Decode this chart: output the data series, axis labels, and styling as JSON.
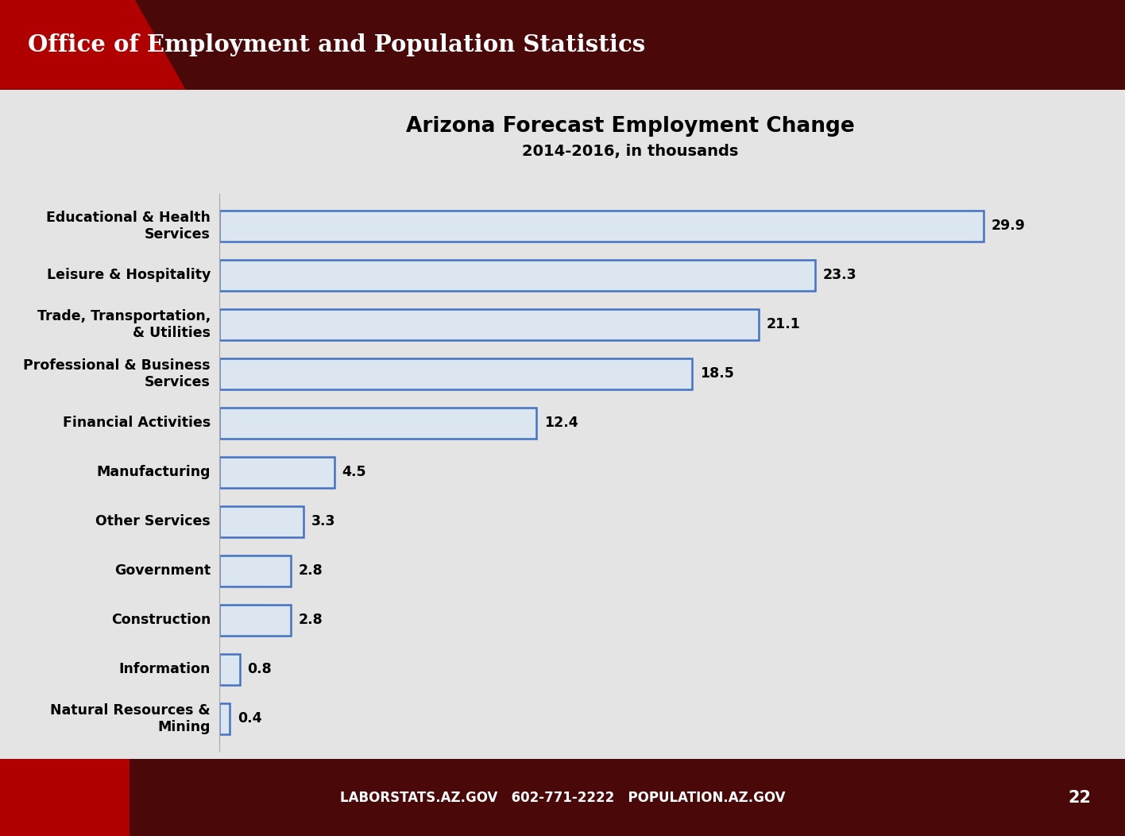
{
  "title": "Arizona Forecast Employment Change",
  "subtitle": "2014-2016, in thousands",
  "categories": [
    "Educational & Health\nServices",
    "Leisure & Hospitality",
    "Trade, Transportation,\n& Utilities",
    "Professional & Business\nServices",
    "Financial Activities",
    "Manufacturing",
    "Other Services",
    "Government",
    "Construction",
    "Information",
    "Natural Resources &\nMining"
  ],
  "values": [
    29.9,
    23.3,
    21.1,
    18.5,
    12.4,
    4.5,
    3.3,
    2.8,
    2.8,
    0.8,
    0.4
  ],
  "bar_face_color": "#dce6f1",
  "bar_edge_color": "#4472c4",
  "bar_linewidth": 1.8,
  "value_labels": [
    "29.9",
    "23.3",
    "21.1",
    "18.5",
    "12.4",
    "4.5",
    "3.3",
    "2.8",
    "2.8",
    "0.8",
    "0.4"
  ],
  "header_bg_dark": "#4a0808",
  "header_bg_red": "#b00000",
  "footer_bg_dark": "#4a0808",
  "footer_bg_red": "#b00000",
  "chart_bg": "#e4e4e4",
  "header_title": "Office of Employment and Population Statistics",
  "footer_text": "LABORSTATS.AZ.GOV   602-771-2222   POPULATION.AZ.GOV",
  "footer_page": "22",
  "title_fontsize": 19,
  "subtitle_fontsize": 14,
  "label_fontsize": 12.5,
  "value_fontsize": 12.5,
  "header_fontsize": 21,
  "footer_fontsize": 12
}
